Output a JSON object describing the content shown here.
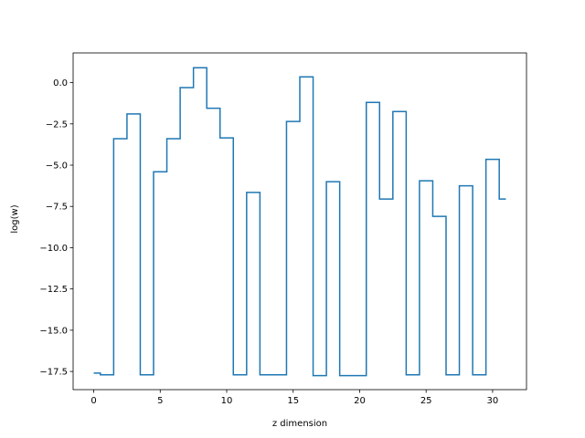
{
  "chart_data": {
    "type": "line",
    "step": "mid",
    "title": "",
    "xlabel": "z dimension",
    "ylabel": "log(w)",
    "xlim": [
      -1.55,
      32.55
    ],
    "ylim": [
      -18.6,
      1.8
    ],
    "xticks": [
      0,
      5,
      10,
      15,
      20,
      25,
      30
    ],
    "xtick_labels": [
      "0",
      "5",
      "10",
      "15",
      "20",
      "25",
      "30"
    ],
    "yticks": [
      0.0,
      -2.5,
      -5.0,
      -7.5,
      -10.0,
      -12.5,
      -15.0,
      -17.5
    ],
    "ytick_labels": [
      "0.0",
      "−2.5",
      "−5.0",
      "−7.5",
      "−10.0",
      "−12.5",
      "−15.0",
      "−17.5"
    ],
    "grid": false,
    "legend": "none",
    "color": "#1f77b4",
    "x": [
      0,
      1,
      2,
      3,
      4,
      5,
      6,
      7,
      8,
      9,
      10,
      11,
      12,
      13,
      14,
      15,
      16,
      17,
      18,
      19,
      20,
      21,
      22,
      23,
      24,
      25,
      26,
      27,
      28,
      29,
      30,
      31
    ],
    "y": [
      -17.6,
      -17.7,
      -3.4,
      -1.9,
      -17.7,
      -5.4,
      -3.4,
      -0.3,
      0.9,
      -1.55,
      -3.35,
      -17.7,
      -6.65,
      -17.7,
      -17.7,
      -2.35,
      0.35,
      -17.75,
      -6.0,
      -17.75,
      -17.75,
      -1.2,
      -7.05,
      -1.75,
      -17.7,
      -5.95,
      -8.1,
      -17.7,
      -6.25,
      -17.7,
      -4.65,
      -7.05
    ]
  }
}
